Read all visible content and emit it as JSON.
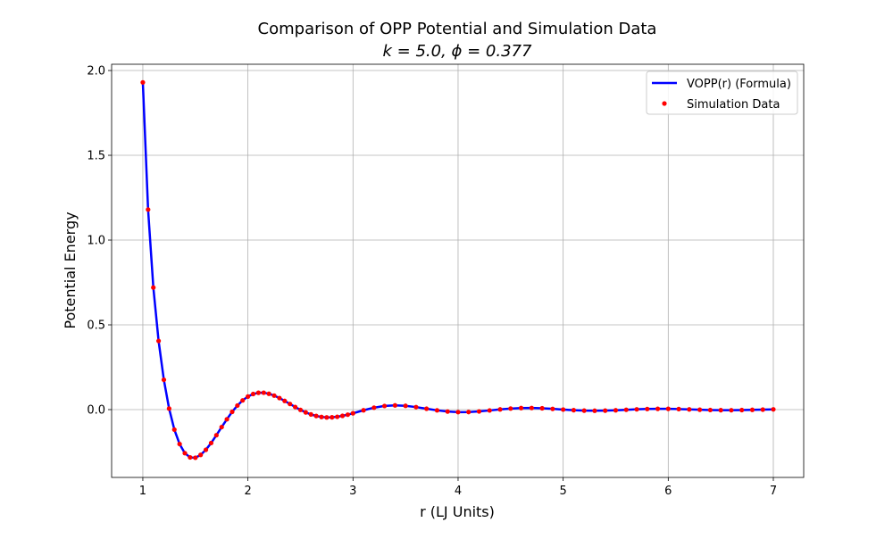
{
  "chart_data": {
    "type": "line",
    "title": "Comparison of OPP Potential and Simulation Data",
    "subtitle": "k = 5.0, ϕ = 0.377",
    "xlabel": "r (LJ Units)",
    "ylabel": "Potential Energy",
    "x": [
      1.0,
      1.05,
      1.1,
      1.15,
      1.2,
      1.25,
      1.3,
      1.35,
      1.4,
      1.45,
      1.5,
      1.55,
      1.6,
      1.65,
      1.7,
      1.75,
      1.8,
      1.85,
      1.9,
      1.95,
      2.0,
      2.05,
      2.1,
      2.15,
      2.2,
      2.25,
      2.3,
      2.35,
      2.4,
      2.45,
      2.5,
      2.55,
      2.6,
      2.65,
      2.7,
      2.75,
      2.8,
      2.85,
      2.9,
      2.95,
      3.0,
      3.1,
      3.2,
      3.3,
      3.4,
      3.5,
      3.6,
      3.7,
      3.8,
      3.9,
      4.0,
      4.1,
      4.2,
      4.3,
      4.4,
      4.5,
      4.6,
      4.7,
      4.8,
      4.9,
      5.0,
      5.1,
      5.2,
      5.3,
      5.4,
      5.5,
      5.6,
      5.7,
      5.8,
      5.9,
      6.0,
      6.1,
      6.2,
      6.3,
      6.4,
      6.5,
      6.6,
      6.7,
      6.8,
      6.9,
      7.0
    ],
    "series": [
      {
        "name": "VOPP(r) (Formula)",
        "type": "line",
        "color": "#0000ff",
        "values": [
          1.93,
          1.18,
          0.72,
          0.405,
          0.176,
          0.006,
          -0.118,
          -0.203,
          -0.257,
          -0.282,
          -0.284,
          -0.267,
          -0.237,
          -0.197,
          -0.151,
          -0.103,
          -0.057,
          -0.013,
          0.024,
          0.0544,
          0.077,
          0.092,
          0.0994,
          0.0996,
          0.0935,
          0.0827,
          0.0681,
          0.0512,
          0.0333,
          0.0153,
          -0.0015,
          -0.0163,
          -0.0284,
          -0.0375,
          -0.0434,
          -0.046,
          -0.0455,
          -0.0423,
          -0.0369,
          -0.0298,
          -0.0216,
          -0.004,
          0.0114,
          0.0215,
          0.025,
          0.0222,
          0.0148,
          0.0051,
          -0.0043,
          -0.0114,
          -0.0148,
          -0.0143,
          -0.0107,
          -0.0049,
          0.0012,
          0.0062,
          0.0092,
          0.0096,
          0.0078,
          0.0044,
          0.0003,
          -0.0033,
          -0.0058,
          -0.0067,
          -0.0059,
          -0.0038,
          -0.001,
          0.0017,
          0.0037,
          0.0047,
          0.0045,
          0.0032,
          0.0013,
          -0.0007,
          -0.0024,
          -0.0034,
          -0.0035,
          -0.0027,
          -0.0014,
          0.0001,
          0.0015
        ]
      },
      {
        "name": "Simulation Data",
        "type": "scatter",
        "color": "#ff0000",
        "values": [
          1.93,
          1.18,
          0.72,
          0.405,
          0.176,
          0.006,
          -0.118,
          -0.203,
          -0.257,
          -0.282,
          -0.284,
          -0.267,
          -0.237,
          -0.197,
          -0.151,
          -0.103,
          -0.057,
          -0.013,
          0.024,
          0.0544,
          0.077,
          0.092,
          0.0994,
          0.0996,
          0.0935,
          0.0827,
          0.0681,
          0.0512,
          0.0333,
          0.0153,
          -0.0015,
          -0.0163,
          -0.0284,
          -0.0375,
          -0.0434,
          -0.046,
          -0.0455,
          -0.0423,
          -0.0369,
          -0.0298,
          -0.0216,
          -0.004,
          0.0114,
          0.0215,
          0.025,
          0.0222,
          0.0148,
          0.0051,
          -0.0043,
          -0.0114,
          -0.0148,
          -0.0143,
          -0.0107,
          -0.0049,
          0.0012,
          0.0062,
          0.0092,
          0.0096,
          0.0078,
          0.0044,
          0.0003,
          -0.0033,
          -0.0058,
          -0.0067,
          -0.0059,
          -0.0038,
          -0.001,
          0.0017,
          0.0037,
          0.0047,
          0.0045,
          0.0032,
          0.0013,
          -0.0007,
          -0.0024,
          -0.0034,
          -0.0035,
          -0.0027,
          -0.0014,
          0.0001,
          0.0015
        ]
      }
    ],
    "xlim": [
      0.703,
      7.289
    ],
    "ylim": [
      -0.4,
      2.037
    ],
    "xticks": [
      1,
      2,
      3,
      4,
      5,
      6,
      7
    ],
    "yticks": [
      {
        "value": 0,
        "label": "0.0"
      },
      0.5,
      {
        "value": 1,
        "label": "1.0"
      },
      1.5,
      {
        "value": 2,
        "label": "2.0"
      }
    ],
    "grid": true,
    "legend": "upper right"
  }
}
